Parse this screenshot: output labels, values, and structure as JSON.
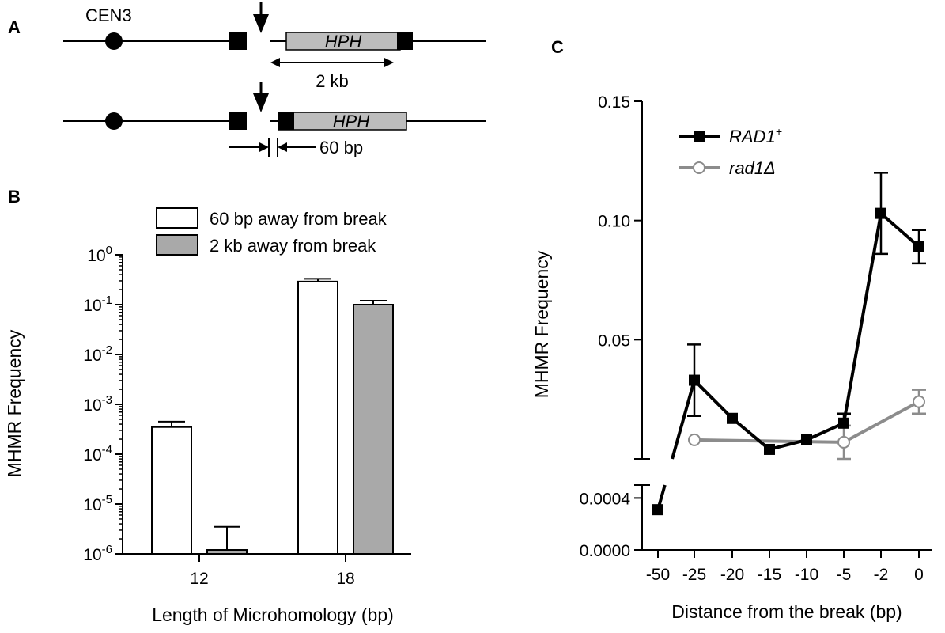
{
  "panels": {
    "a": {
      "letter": "A",
      "centromere_label": "CEN3",
      "gene_label": "HPH",
      "upper_distance_label": "2 kb",
      "lower_distance_label": "60 bp"
    }
  },
  "chart_data": [
    {
      "panel": "B",
      "type": "bar",
      "xlabel": "Length of Microhomology (bp)",
      "ylabel": "MHMR Frequency",
      "yscale": "log",
      "ylim": [
        1e-06,
        1
      ],
      "y_ticks": [
        {
          "base": "10",
          "exp": "0"
        },
        {
          "base": "10",
          "exp": "-1"
        },
        {
          "base": "10",
          "exp": "-2"
        },
        {
          "base": "10",
          "exp": "-3"
        },
        {
          "base": "10",
          "exp": "-4"
        },
        {
          "base": "10",
          "exp": "-5"
        },
        {
          "base": "10",
          "exp": "-6"
        }
      ],
      "categories": [
        "12",
        "18"
      ],
      "series": [
        {
          "name": "60 bp away from break",
          "color": "#ffffff",
          "values": [
            0.00035,
            0.29
          ],
          "errors_upper": [
            0.00045,
            0.33
          ]
        },
        {
          "name": "2 kb away from break",
          "color": "#a9a9a9",
          "values": [
            1.2e-06,
            0.1
          ],
          "errors_upper": [
            3.5e-06,
            0.12
          ]
        }
      ],
      "legend": "top-center"
    },
    {
      "panel": "C",
      "type": "line",
      "xlabel": "Distance from the break (bp)",
      "ylabel": "MHMR Frequency",
      "x_tick_labels": [
        "-50",
        "-25",
        "-20",
        "-15",
        "-10",
        "-5",
        "-2",
        "0"
      ],
      "broken_y_axis": true,
      "y_upper": {
        "range": [
          0.0,
          0.15
        ],
        "tick_labels": [
          "0.15",
          "0.10",
          "0.05"
        ],
        "tick_values": [
          0.15,
          0.1,
          0.05
        ]
      },
      "y_lower": {
        "range": [
          0.0,
          0.0005
        ],
        "tick_labels": [
          "0.0004",
          "0.0000"
        ],
        "tick_values": [
          0.0004,
          0.0
        ]
      },
      "series": [
        {
          "name": "RAD1",
          "superscript": "+",
          "color": "#000000",
          "marker": "filled-square",
          "points": [
            {
              "x": "-50",
              "y": 0.00031,
              "segment": "lower"
            },
            {
              "x": "-25",
              "y": 0.033,
              "err": 0.015
            },
            {
              "x": "-20",
              "y": 0.017
            },
            {
              "x": "-15",
              "y": 0.004
            },
            {
              "x": "-10",
              "y": 0.008
            },
            {
              "x": "-5",
              "y": 0.015,
              "err": 0.004
            },
            {
              "x": "-2",
              "y": 0.103,
              "err": 0.017
            },
            {
              "x": "0",
              "y": 0.089,
              "err": 0.007
            }
          ]
        },
        {
          "name": "rad1Δ",
          "color": "#8c8c8c",
          "marker": "open-circle",
          "points": [
            {
              "x": "-25",
              "y": 0.008
            },
            {
              "x": "-5",
              "y": 0.007,
              "err": 0.007
            },
            {
              "x": "0",
              "y": 0.024,
              "err": 0.005
            }
          ]
        }
      ],
      "legend": "top-left"
    }
  ]
}
